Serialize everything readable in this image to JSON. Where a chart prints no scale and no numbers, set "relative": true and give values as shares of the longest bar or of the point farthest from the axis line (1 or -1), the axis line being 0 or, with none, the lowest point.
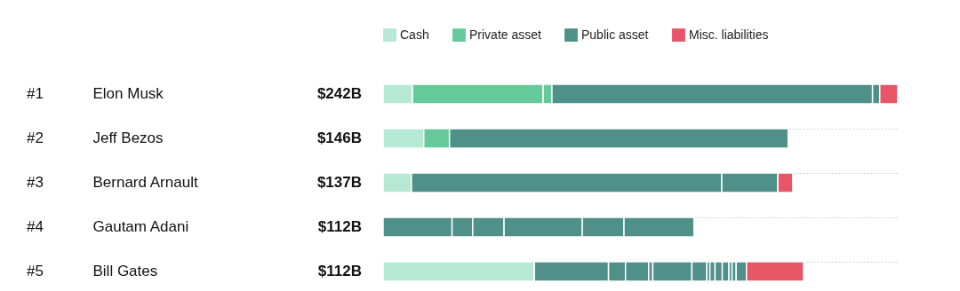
{
  "chart_data": {
    "type": "bar",
    "orientation": "horizontal",
    "stacked": true,
    "relative": true,
    "legend": "top",
    "grid": "y",
    "categories": [
      "Elon Musk",
      "Jeff Bezos",
      "Bernard Arnault",
      "Gautam Adani",
      "Bill Gates"
    ],
    "annotations": [
      "#1",
      "#2",
      "#3",
      "#4",
      "#5",
      "$242B",
      "$146B",
      "$137B",
      "$112B",
      "$112B"
    ],
    "series": [
      {
        "name": "Cash",
        "color": "#b5e9d6",
        "values": [
          0.057,
          0.079,
          0.055,
          null,
          0.294
        ]
      },
      {
        "name": "Private asset",
        "color": "#66c99a",
        "values": [
          0.254,
          0.05,
          null,
          null,
          null
        ]
      },
      {
        "color": "#66c99a",
        "values": [
          0.017,
          null,
          null,
          null,
          null
        ]
      },
      {
        "name": "Public asset",
        "color": "#4f9189",
        "values": [
          0.623,
          0.658,
          0.603,
          0.134,
          0.144
        ]
      },
      {
        "color": "#4f9189",
        "values": [
          0.014,
          null,
          0.109,
          0.04,
          0.033
        ]
      },
      {
        "color": "#4f9189",
        "values": [
          null,
          null,
          null,
          0.061,
          0.045
        ]
      },
      {
        "color": "#4f9189",
        "values": [
          null,
          null,
          null,
          0.152,
          0.008
        ]
      },
      {
        "color": "#4f9189",
        "values": [
          null,
          null,
          null,
          0.081,
          0.076
        ]
      },
      {
        "color": "#4f9189",
        "values": [
          null,
          null,
          null,
          0.136,
          0.029
        ]
      },
      {
        "color": "#4f9189",
        "values": [
          null,
          null,
          null,
          null,
          0.006
        ]
      },
      {
        "color": "#4f9189",
        "values": [
          null,
          null,
          null,
          null,
          0.01
        ]
      },
      {
        "color": "#4f9189",
        "values": [
          null,
          null,
          null,
          null,
          0.014
        ]
      },
      {
        "color": "#4f9189",
        "values": [
          null,
          null,
          null,
          null,
          0.013
        ]
      },
      {
        "color": "#4f9189",
        "values": [
          null,
          null,
          null,
          null,
          0.006
        ]
      },
      {
        "color": "#4f9189",
        "values": [
          null,
          null,
          null,
          null,
          0.008
        ]
      },
      {
        "color": "#4f9189",
        "values": [
          null,
          null,
          null,
          null,
          0.02
        ]
      },
      {
        "name": "Misc. liabilities",
        "color": "#e85567",
        "values": [
          0.035,
          null,
          0.029,
          null,
          0.111
        ]
      }
    ]
  }
}
